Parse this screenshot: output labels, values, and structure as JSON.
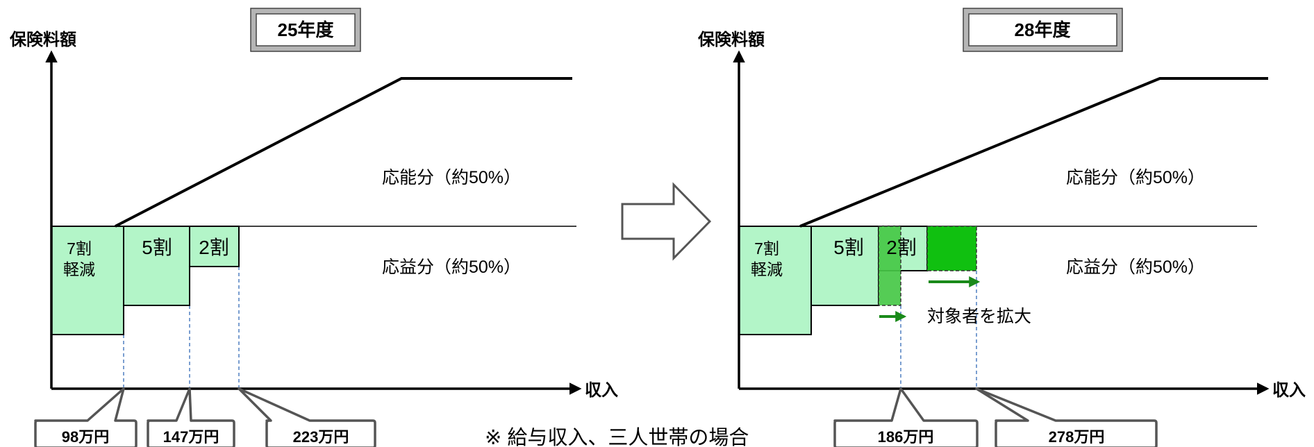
{
  "left_panel": {
    "year_title": "25年度",
    "y_axis_label": "保険料額",
    "x_axis_label": "収入",
    "ability_label": "応能分（約50%）",
    "benefit_label": "応益分（約50%）",
    "band_7": [
      "7割",
      "軽減"
    ],
    "band_5": "5割",
    "band_2": "2割",
    "income_callouts": [
      "98万円",
      "147万円",
      "223万円"
    ]
  },
  "right_panel": {
    "year_title": "28年度",
    "y_axis_label": "保険料額",
    "x_axis_label": "収入",
    "ability_label": "応能分（約50%）",
    "benefit_label": "応益分（約50%）",
    "band_7": [
      "7割",
      "軽減"
    ],
    "band_5": "5割",
    "band_2": "2割",
    "expansion_label": "対象者を拡大",
    "income_callouts": [
      "186万円",
      "278万円"
    ]
  },
  "footnote": "※ 給与収入、三人世帯の場合",
  "colors": {
    "band_fill": "#b3f5c8",
    "expansion_light": "#46c846",
    "expansion_dark": "#10c010",
    "arrow_green": "#1a8a1a",
    "guide_blue": "#4f7fc0",
    "callout_stroke": "#555555"
  }
}
